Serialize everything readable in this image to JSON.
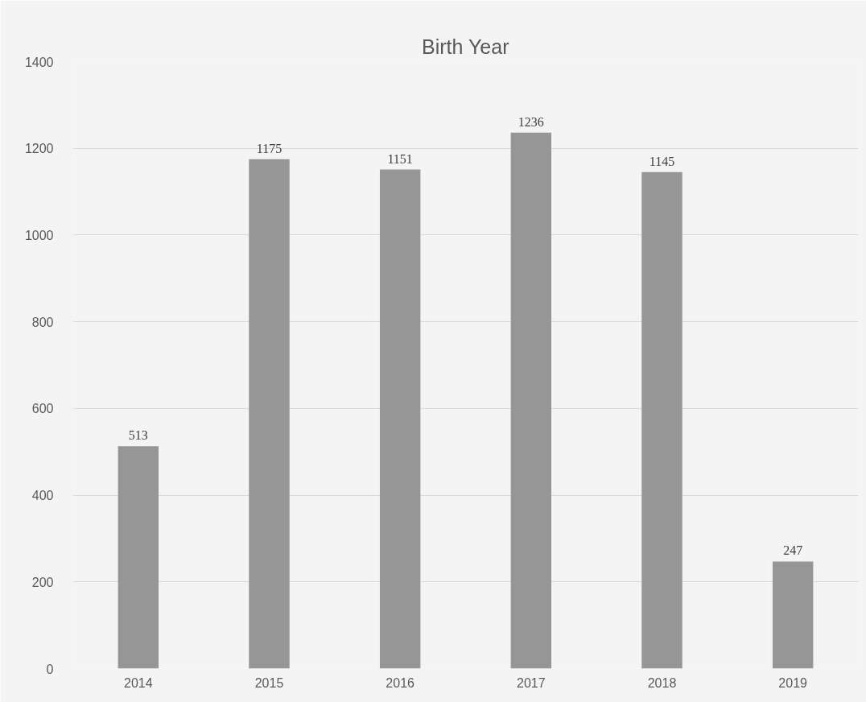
{
  "chart_data": {
    "type": "bar",
    "title": "Birth Year",
    "categories": [
      "2014",
      "2015",
      "2016",
      "2017",
      "2018",
      "2019"
    ],
    "values": [
      513,
      1175,
      1151,
      1236,
      1145,
      247
    ],
    "color": "#969696",
    "ylim": [
      0,
      1400
    ],
    "yticks": [
      0,
      200,
      400,
      600,
      800,
      1000,
      1200,
      1400
    ],
    "grid": "y",
    "data_labels": true
  }
}
